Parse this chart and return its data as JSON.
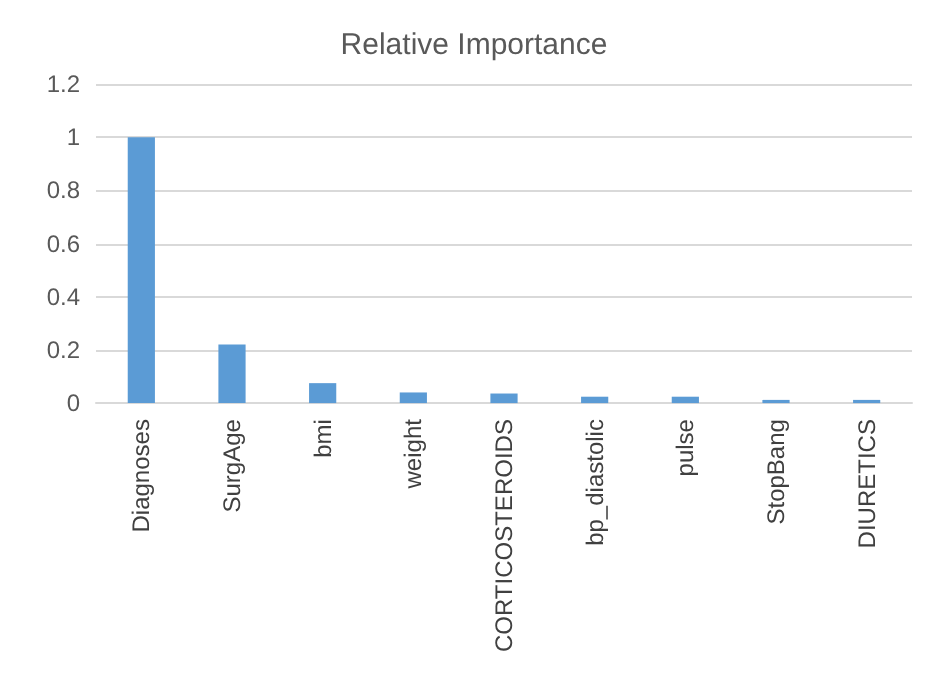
{
  "chart_data": {
    "type": "bar",
    "title": "Relative Importance",
    "categories": [
      "Diagnoses",
      "SurgAge",
      "bmi",
      "weight",
      "CORTICOSTEROIDS",
      "bp_diastolic",
      "pulse",
      "StopBang",
      "DIURETICS"
    ],
    "values": [
      1,
      0.22,
      0.075,
      0.04,
      0.036,
      0.024,
      0.024,
      0.012,
      0.012
    ],
    "color": "#5b9bd5",
    "ylim": [
      0,
      1.2
    ],
    "yticks": [
      0,
      0.2,
      0.4,
      0.6,
      0.8,
      1,
      1.2
    ],
    "grid": "y"
  }
}
